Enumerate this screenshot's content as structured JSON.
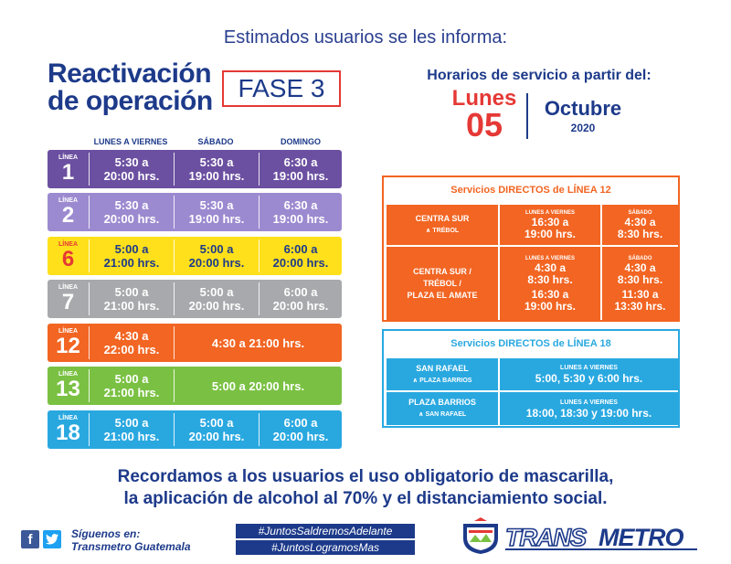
{
  "header": {
    "notice": "Estimados usuarios se les informa:"
  },
  "title": {
    "line1": "Reactivación",
    "line2": "de operación",
    "phase": "FASE 3"
  },
  "schedule": {
    "columns": [
      "LUNES A VIERNES",
      "SÁBADO",
      "DOMINGO"
    ],
    "line_label": "LÍNEA",
    "rows": [
      {
        "line": "1",
        "color": "#6b4fa0",
        "weekday": [
          "5:30 a",
          "20:00 hrs."
        ],
        "saturday": [
          "5:30 a",
          "19:00 hrs."
        ],
        "sunday": [
          "6:30 a",
          "19:00 hrs."
        ]
      },
      {
        "line": "2",
        "color": "#9c8ad0",
        "weekday": [
          "5:30 a",
          "20:00 hrs."
        ],
        "saturday": [
          "5:30 a",
          "19:00 hrs."
        ],
        "sunday": [
          "6:30 a",
          "19:00 hrs."
        ]
      },
      {
        "line": "6",
        "color": "#ffe01b",
        "weekday": [
          "5:00 a",
          "21:00 hrs."
        ],
        "saturday": [
          "5:00 a",
          "20:00 hrs."
        ],
        "sunday": [
          "6:00 a",
          "20:00 hrs."
        ]
      },
      {
        "line": "7",
        "color": "#a7a9ac",
        "weekday": [
          "5:00 a",
          "21:00 hrs."
        ],
        "saturday": [
          "5:00 a",
          "20:00 hrs."
        ],
        "sunday": [
          "6:00 a",
          "20:00 hrs."
        ]
      },
      {
        "line": "12",
        "color": "#f26522",
        "weekday": [
          "4:30 a",
          "22:00 hrs."
        ],
        "weekend": "4:30 a 21:00 hrs."
      },
      {
        "line": "13",
        "color": "#7ac143",
        "weekday": [
          "5:00 a",
          "21:00 hrs."
        ],
        "weekend": "5:00 a 20:00 hrs."
      },
      {
        "line": "18",
        "color": "#29a8e0",
        "weekday": [
          "5:00 a",
          "21:00 hrs."
        ],
        "saturday": [
          "5:00 a",
          "20:00 hrs."
        ],
        "sunday": [
          "6:00 a",
          "20:00 hrs."
        ]
      }
    ]
  },
  "service_start": {
    "heading": "Horarios de servicio a partir del:",
    "day_name": "Lunes",
    "day": "05",
    "month": "Octubre",
    "year": "2020"
  },
  "direct12": {
    "title": "Servicios DIRECTOS de LÍNEA 12",
    "routes": [
      {
        "route": [
          "CENTRA SUR",
          "∧ TRÉBOL"
        ],
        "weekday_label": "LUNES A VIERNES",
        "weekday": [
          "16:30 a",
          "19:00 hrs."
        ],
        "saturday_label": "SÁBADO",
        "saturday": [
          "4:30 a",
          "8:30 hrs."
        ]
      },
      {
        "route": [
          "CENTRA SUR /",
          "TRÉBOL /",
          "PLAZA EL AMATE"
        ],
        "weekday_label": "LUNES A VIERNES",
        "weekday": [
          "4:30 a",
          "8:30 hrs.",
          "16:30 a",
          "19:00 hrs."
        ],
        "saturday_label": "SÁBADO",
        "saturday": [
          "4:30 a",
          "8:30 hrs.",
          "11:30 a",
          "13:30 hrs."
        ]
      }
    ]
  },
  "direct18": {
    "title": "Servicios DIRECTOS de LÍNEA 18",
    "routes": [
      {
        "route": [
          "SAN RAFAEL",
          "∧ PLAZA BARRIOS"
        ],
        "label": "LUNES A VIERNES",
        "times": "5:00, 5:30 y 6:00 hrs."
      },
      {
        "route": [
          "PLAZA BARRIOS",
          "∧ SAN RAFAEL"
        ],
        "label": "LUNES A VIERNES",
        "times": "18:00, 18:30 y 19:00 hrs."
      }
    ]
  },
  "reminder": {
    "line1": "Recordamos a los usuarios el uso obligatorio de mascarilla,",
    "line2": "la aplicación de alcohol al 70%  y el distanciamiento social."
  },
  "footer": {
    "follow1": "Síguenos en:",
    "follow2": "Transmetro Guatemala",
    "hashtag1": "#JuntosSaldremosAdelante",
    "hashtag2": "#JuntosLogramosMas",
    "brand": "TRANSMETRO",
    "icons": [
      "facebook-icon",
      "twitter-icon",
      "transmetro-logo"
    ]
  },
  "colors": {
    "navy": "#1d3a8a",
    "red": "#e53935",
    "orange": "#f26522",
    "blue": "#29a8e0"
  }
}
